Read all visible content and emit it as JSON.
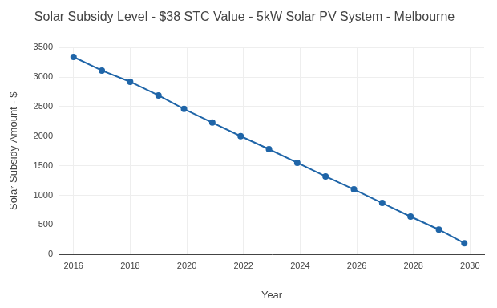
{
  "chart_data": {
    "type": "line",
    "title": "Solar Subsidy Level - $38 STC Value - 5kW Solar PV System - Melbourne",
    "x_label": "Year",
    "y_label": "Solar Subsidy Amount - $",
    "x": [
      2016,
      2017,
      2018,
      2019,
      2019.9,
      2020.9,
      2021.9,
      2022.9,
      2023.9,
      2024.9,
      2025.9,
      2026.9,
      2027.9,
      2028.9,
      2029.8
    ],
    "values": [
      3340,
      3110,
      2920,
      2690,
      2460,
      2230,
      2000,
      1780,
      1550,
      1320,
      1100,
      870,
      640,
      420,
      190
    ],
    "color": "#1f65a8",
    "marker": "circle",
    "line_style": "solid",
    "xlim": [
      2015.5,
      2030.5
    ],
    "xticks": [
      2016,
      2018,
      2020,
      2022,
      2024,
      2026,
      2028,
      2030
    ],
    "ylim": [
      0,
      3500
    ],
    "yticks": [
      0,
      500,
      1000,
      1500,
      2000,
      2500,
      3000,
      3500
    ],
    "grid": true
  }
}
